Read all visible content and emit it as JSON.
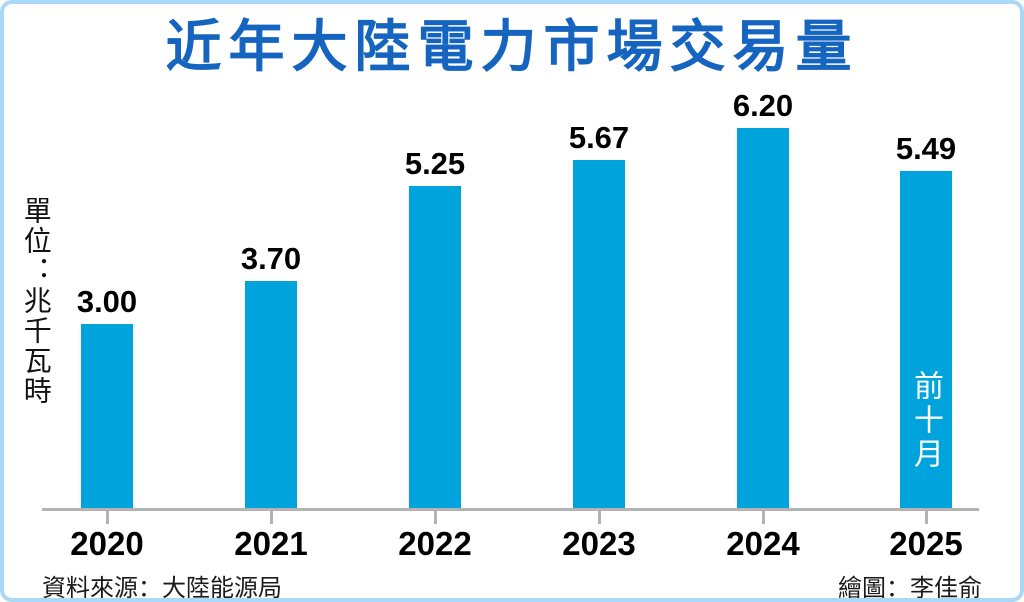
{
  "title": "近年大陸電力市場交易量",
  "unit_label": "單位：兆千瓦時",
  "footer": {
    "source": "資料來源：大陸能源局",
    "credit": "繪圖：李佳俞"
  },
  "colors": {
    "bar": "#00a3dc",
    "title": "#1565c0",
    "axis": "#b3b3b3",
    "frame_border": "#a9d9f6",
    "annotation_text": "#ffffff",
    "label_text": "#000000"
  },
  "chart_data": {
    "type": "bar",
    "categories": [
      "2020",
      "2021",
      "2022",
      "2023",
      "2024",
      "2025"
    ],
    "values": [
      3.0,
      3.7,
      5.25,
      5.67,
      6.2,
      5.49
    ],
    "value_labels": [
      "3.00",
      "3.70",
      "5.25",
      "5.67",
      "6.20",
      "5.49"
    ],
    "bar_annotations": [
      "",
      "",
      "",
      "",
      "",
      "前十月"
    ],
    "title": "近年大陸電力市場交易量",
    "xlabel": "",
    "ylabel": "單位：兆千瓦時",
    "ylim": [
      0,
      6.8
    ],
    "grid": false,
    "legend": null,
    "notes": "2025 bar covers first ten months (前十月); source 大陸能源局"
  }
}
